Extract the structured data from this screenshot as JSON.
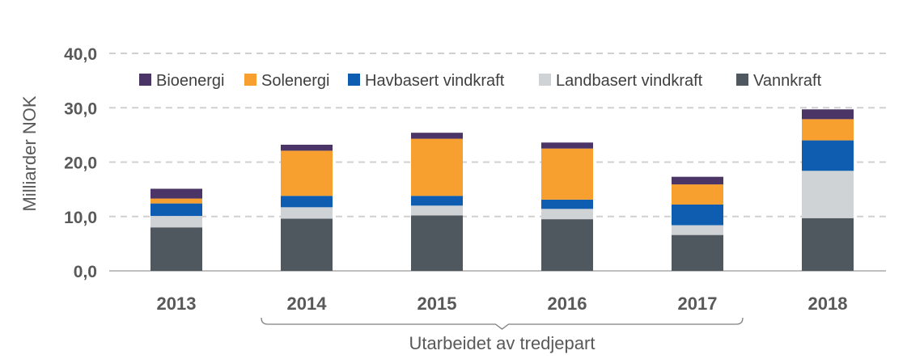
{
  "chart_data": {
    "type": "bar",
    "stacked": true,
    "title": "",
    "xlabel": "",
    "ylabel": "Milliarder NOK",
    "ylim": [
      0,
      40
    ],
    "yticks": [
      "0,0",
      "10,0",
      "20,0",
      "30,0",
      "40,0"
    ],
    "ytick_values": [
      0,
      10,
      20,
      30,
      40
    ],
    "grid": true,
    "legend_position": "top",
    "categories": [
      "2013",
      "2014",
      "2015",
      "2016",
      "2017",
      "2018"
    ],
    "series": [
      {
        "name": "Vannkraft",
        "color": "#4f575f",
        "values": [
          8.0,
          9.6,
          10.2,
          9.5,
          6.6,
          9.7
        ]
      },
      {
        "name": "Landbasert vindkraft",
        "color": "#d0d3d6",
        "values": [
          2.1,
          2.1,
          1.8,
          1.9,
          1.8,
          8.7
        ]
      },
      {
        "name": "Havbasert vindkraft",
        "color": "#0e5db1",
        "values": [
          2.3,
          2.1,
          1.8,
          1.7,
          3.8,
          5.6
        ]
      },
      {
        "name": "Solenergi",
        "color": "#f7a030",
        "values": [
          0.9,
          8.3,
          10.5,
          9.4,
          3.7,
          3.9
        ]
      },
      {
        "name": "Bioenergi",
        "color": "#4b3466",
        "values": [
          1.8,
          1.1,
          1.1,
          1.1,
          1.4,
          1.8
        ]
      }
    ],
    "legend_order": [
      "Bioenergi",
      "Solenergi",
      "Havbasert vindkraft",
      "Landbasert vindkraft",
      "Vannkraft"
    ],
    "annotation": {
      "text": "Utarbeidet av tredjepart",
      "from_category": "2014",
      "to_category": "2017"
    }
  }
}
